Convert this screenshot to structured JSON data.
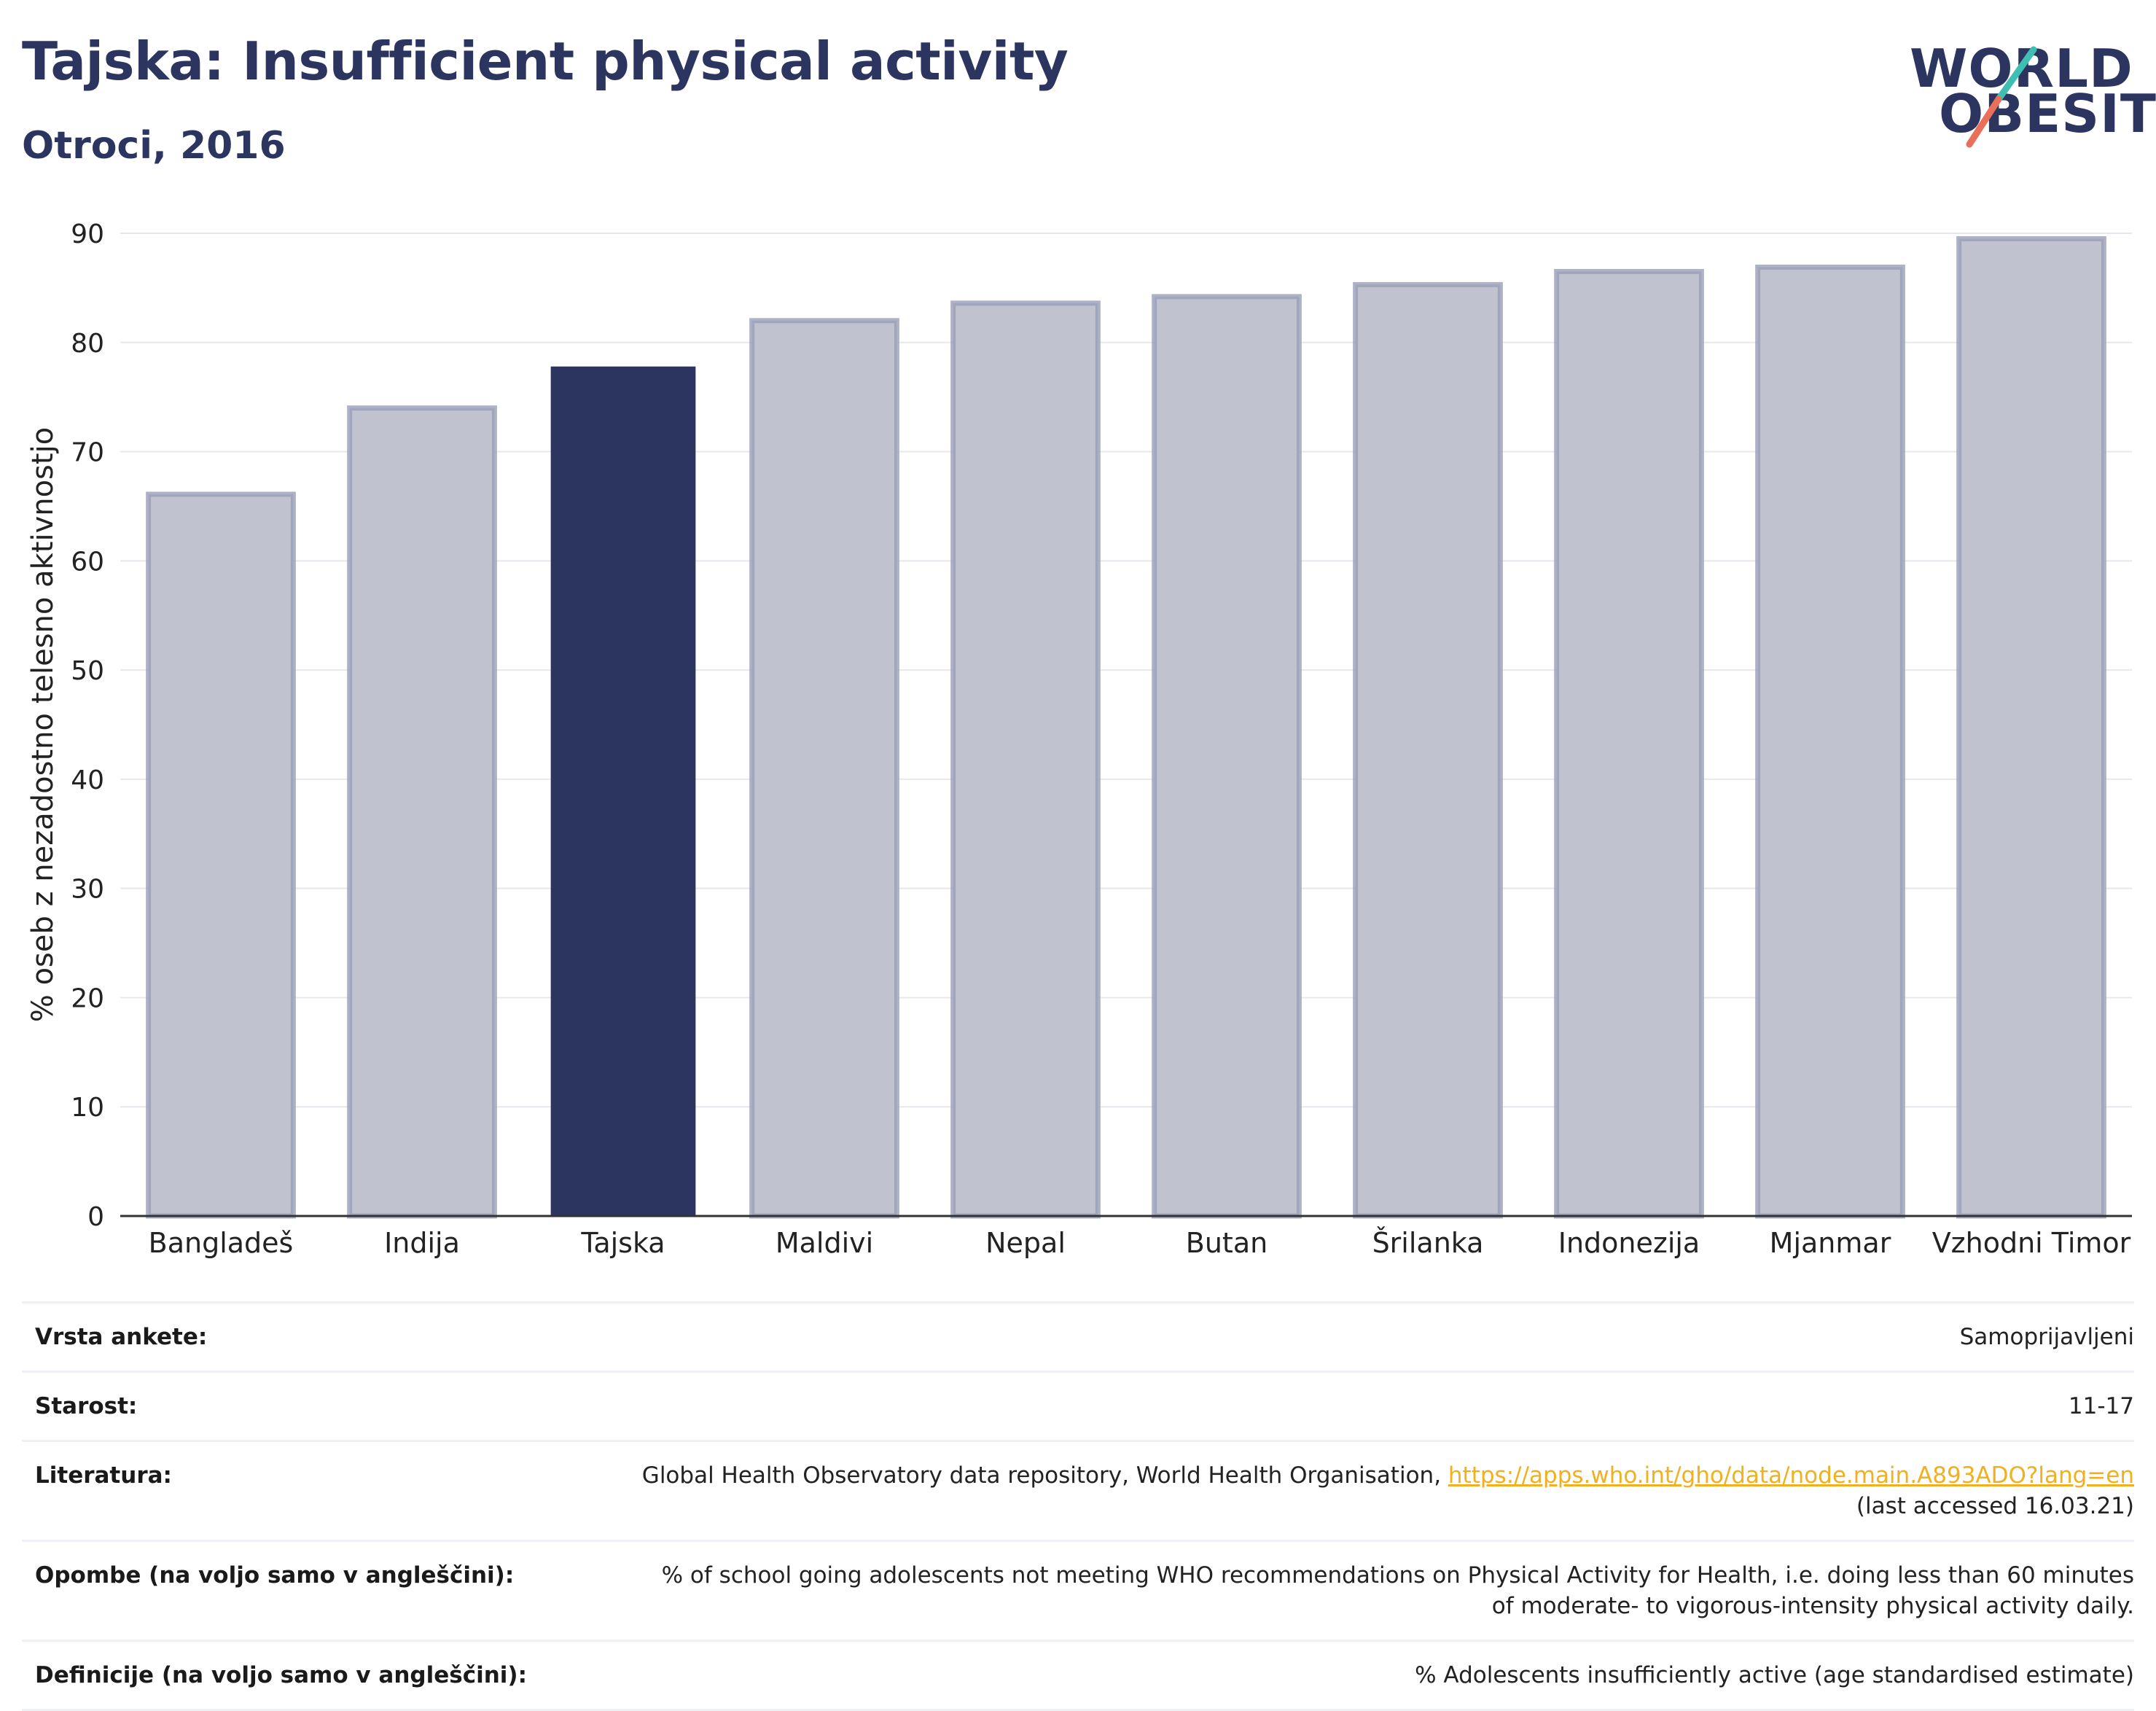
{
  "header": {
    "title": "Tajska: Insufficient physical activity",
    "subtitle": "Otroci, 2016"
  },
  "logo": {
    "line1": "WORLD",
    "line2": "OBESITY",
    "accent_colors": [
      "#3fbfb3",
      "#e8705a"
    ]
  },
  "colors": {
    "highlight": "#2b3560",
    "bar": "#c0c3cf",
    "bar_outline": "#9a9fb8",
    "grid": "#e6e8ee",
    "link": "#f0b020"
  },
  "chart_data": {
    "type": "bar",
    "title": "Tajska: Insufficient physical activity",
    "subtitle": "Otroci, 2016",
    "ylabel": "% oseb z nezadostno telesno aktivnostjo",
    "xlabel": "",
    "ylim": [
      0,
      90
    ],
    "yticks": [
      0,
      10,
      20,
      30,
      40,
      50,
      60,
      70,
      80,
      90
    ],
    "grid": true,
    "categories": [
      "Bangladeš",
      "Indija",
      "Tajska",
      "Maldivi",
      "Nepal",
      "Butan",
      "Šrilanka",
      "Indonezija",
      "Mjanmar",
      "Vzhodni Timor"
    ],
    "values": [
      66.1,
      74.0,
      77.8,
      82.0,
      83.6,
      84.2,
      85.3,
      86.5,
      86.9,
      89.5
    ],
    "highlight": "Tajska"
  },
  "meta": {
    "survey_label": "Vrsta ankete:",
    "survey_value": "Samoprijavljeni",
    "age_label": "Starost:",
    "age_value": "11-17",
    "ref_label": "Literatura:",
    "ref_text": "Global Health Observatory data repository, World Health Organisation,",
    "ref_link": "https://apps.who.int/gho/data/node.main.A893ADO?lang=en",
    "ref_accessed": "(last accessed 16.03.21)",
    "notes_label": "Opombe (na voljo samo v angleščini):",
    "notes_value": "% of school going adolescents not meeting WHO recommendations on Physical Activity for Health, i.e. doing less than 60 minutes of moderate- to vigorous-intensity physical activity daily.",
    "def_label": "Definicije (na voljo samo v angleščini):",
    "def_value": "% Adolescents insufficiently active (age standardised estimate)"
  }
}
